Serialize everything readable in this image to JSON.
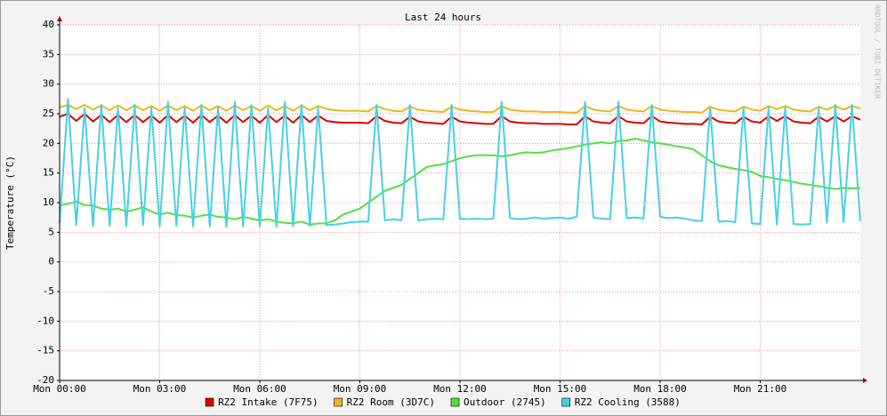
{
  "chart_data": {
    "type": "line",
    "title": "Last 24 hours",
    "y_label": "Temperature (°C)",
    "watermark": "RRDTOOL / TOBI OETIKER",
    "x": [
      0,
      0.25,
      0.5,
      0.75,
      1,
      1.25,
      1.5,
      1.75,
      2,
      2.25,
      2.5,
      2.75,
      3,
      3.25,
      3.5,
      3.75,
      4,
      4.25,
      4.5,
      4.75,
      5,
      5.25,
      5.5,
      5.75,
      6,
      6.25,
      6.5,
      6.75,
      7,
      7.25,
      7.5,
      7.75,
      8,
      8.25,
      8.5,
      8.75,
      9,
      9.25,
      9.5,
      9.75,
      10,
      10.25,
      10.5,
      10.75,
      11,
      11.25,
      11.5,
      11.75,
      12,
      12.25,
      12.5,
      12.75,
      13,
      13.25,
      13.5,
      13.75,
      14,
      14.25,
      14.5,
      14.75,
      15,
      15.25,
      15.5,
      15.75,
      16,
      16.25,
      16.5,
      16.75,
      17,
      17.25,
      17.5,
      17.75,
      18,
      18.25,
      18.5,
      18.75,
      19,
      19.25,
      19.5,
      19.75,
      20,
      20.25,
      20.5,
      20.75,
      21,
      21.25,
      21.5,
      21.75,
      22,
      22.25,
      22.5,
      22.75,
      23,
      23.25,
      23.5,
      23.75,
      24
    ],
    "xlim": [
      0,
      24
    ],
    "xticks": [
      {
        "value": 0,
        "label": "Mon 00:00"
      },
      {
        "value": 3,
        "label": "Mon 03:00"
      },
      {
        "value": 6,
        "label": "Mon 06:00"
      },
      {
        "value": 9,
        "label": "Mon 09:00"
      },
      {
        "value": 12,
        "label": "Mon 12:00"
      },
      {
        "value": 15,
        "label": "Mon 15:00"
      },
      {
        "value": 18,
        "label": "Mon 18:00"
      },
      {
        "value": 21,
        "label": "Mon 21:00"
      }
    ],
    "ylim": [
      -20,
      40
    ],
    "yticks": [
      -20,
      -15,
      -10,
      -5,
      0,
      5,
      10,
      15,
      20,
      25,
      30,
      35,
      40
    ],
    "grid": true,
    "legend": "bottom",
    "series": [
      {
        "name": "RZ2 Intake (7F75)",
        "color": "#e00000",
        "values": [
          24.5,
          25,
          23.8,
          25,
          23.7,
          24.8,
          23.6,
          24.8,
          23.6,
          24.8,
          23.6,
          24.7,
          23.5,
          24.8,
          23.6,
          24.7,
          23.5,
          24.8,
          23.6,
          24.7,
          23.5,
          24.8,
          23.6,
          24.7,
          23.5,
          24.8,
          23.6,
          24.7,
          23.5,
          24.8,
          23.6,
          24.7,
          23.8,
          23.6,
          23.5,
          23.5,
          23.5,
          23.4,
          24.6,
          23.8,
          23.5,
          23.4,
          24.5,
          23.7,
          23.5,
          23.4,
          23.3,
          24.5,
          23.7,
          23.5,
          23.4,
          23.3,
          23.3,
          24.6,
          23.7,
          23.5,
          23.4,
          23.4,
          23.3,
          23.3,
          23.3,
          23.2,
          23.2,
          24.6,
          23.7,
          23.5,
          23.4,
          24.6,
          23.7,
          23.5,
          23.4,
          24.6,
          23.7,
          23.5,
          23.4,
          23.3,
          23.3,
          23.2,
          24.5,
          23.7,
          23.5,
          23.4,
          24.5,
          23.7,
          23.5,
          24.6,
          23.8,
          24.6,
          23.7,
          23.5,
          23.4,
          24.5,
          23.7,
          24.6,
          23.7,
          24.6,
          24
        ]
      },
      {
        "name": "RZ2 Room (3D7C)",
        "color": "#e8b820",
        "values": [
          26.1,
          26.5,
          25.8,
          26.5,
          25.7,
          26.4,
          25.6,
          26.4,
          25.6,
          26.4,
          25.6,
          26.3,
          25.5,
          26.4,
          25.6,
          26.3,
          25.5,
          26.4,
          25.6,
          26.3,
          25.5,
          26.4,
          25.6,
          26.3,
          25.5,
          26.4,
          25.6,
          26.3,
          25.5,
          26.4,
          25.6,
          26.3,
          25.8,
          25.6,
          25.5,
          25.5,
          25.5,
          25.4,
          26.3,
          25.8,
          25.5,
          25.4,
          26.2,
          25.7,
          25.5,
          25.4,
          25.3,
          26.2,
          25.7,
          25.5,
          25.4,
          25.3,
          25.3,
          26.3,
          25.7,
          25.5,
          25.4,
          25.4,
          25.3,
          25.3,
          25.3,
          25.2,
          25.2,
          26.3,
          25.7,
          25.5,
          25.4,
          26.3,
          25.7,
          25.5,
          25.4,
          26.3,
          25.7,
          25.5,
          25.4,
          25.3,
          25.3,
          25.2,
          26.2,
          25.7,
          25.5,
          25.4,
          26.2,
          25.7,
          25.5,
          26.3,
          25.8,
          26.3,
          25.7,
          25.5,
          25.4,
          26.2,
          25.7,
          26.3,
          25.7,
          26.3,
          25.9
        ]
      },
      {
        "name": "Outdoor (2745)",
        "color": "#54e040",
        "values": [
          9.5,
          9.8,
          10.2,
          9.6,
          9.5,
          9,
          8.8,
          9,
          8.5,
          8.8,
          9.2,
          8.5,
          8,
          8.3,
          7.9,
          7.8,
          7.5,
          7.8,
          8,
          7.6,
          7.5,
          7.2,
          7.6,
          7.3,
          7,
          7.2,
          6.8,
          6.6,
          6.5,
          6.8,
          6.3,
          6.5,
          6.5,
          7,
          8,
          8.5,
          9,
          10,
          11,
          12,
          12.5,
          13,
          14,
          15,
          16,
          16.3,
          16.5,
          17,
          17.5,
          17.8,
          18,
          18,
          18,
          17.8,
          18,
          18.3,
          18.5,
          18.4,
          18.5,
          18.8,
          19,
          19.2,
          19.5,
          19.8,
          20,
          20.2,
          20,
          20.4,
          20.5,
          20.8,
          20.5,
          20.2,
          20,
          19.8,
          19.5,
          19.3,
          19,
          18,
          17,
          16.3,
          16,
          15.7,
          15.5,
          15.2,
          14.5,
          14.3,
          14,
          13.8,
          13.5,
          13.2,
          13,
          12.8,
          12.5,
          12.3,
          12.5,
          12.4,
          12.5
        ]
      },
      {
        "name": "RZ2 Cooling (3588)",
        "color": "#48d0e8",
        "values": [
          6.5,
          27.5,
          6.2,
          26,
          6,
          26.5,
          6.1,
          26,
          6,
          26.5,
          6.2,
          26,
          6,
          27,
          6.1,
          26,
          6,
          26.5,
          6,
          26,
          5.9,
          27,
          6,
          26.5,
          6,
          26,
          5.9,
          27,
          6,
          26.5,
          6,
          26,
          6.2,
          6.3,
          6.5,
          6.7,
          6.8,
          6.8,
          26.5,
          7,
          7.2,
          7,
          26.5,
          7,
          7.2,
          7.3,
          7.2,
          26.5,
          7.3,
          7.2,
          7.3,
          7.2,
          7.3,
          27,
          7.4,
          7.2,
          7.3,
          7.5,
          7.3,
          7.4,
          7.5,
          7.3,
          7.6,
          27,
          7.5,
          7.3,
          7.2,
          27,
          7.4,
          7.5,
          7.3,
          26.5,
          7.6,
          7.4,
          7.5,
          7.3,
          7,
          6.9,
          26,
          6.8,
          6.9,
          6.7,
          26,
          6.5,
          6.4,
          26,
          6.3,
          26,
          6.4,
          6.3,
          6.4,
          26,
          6.6,
          26.5,
          6.7,
          26.5,
          6.9
        ]
      }
    ]
  }
}
